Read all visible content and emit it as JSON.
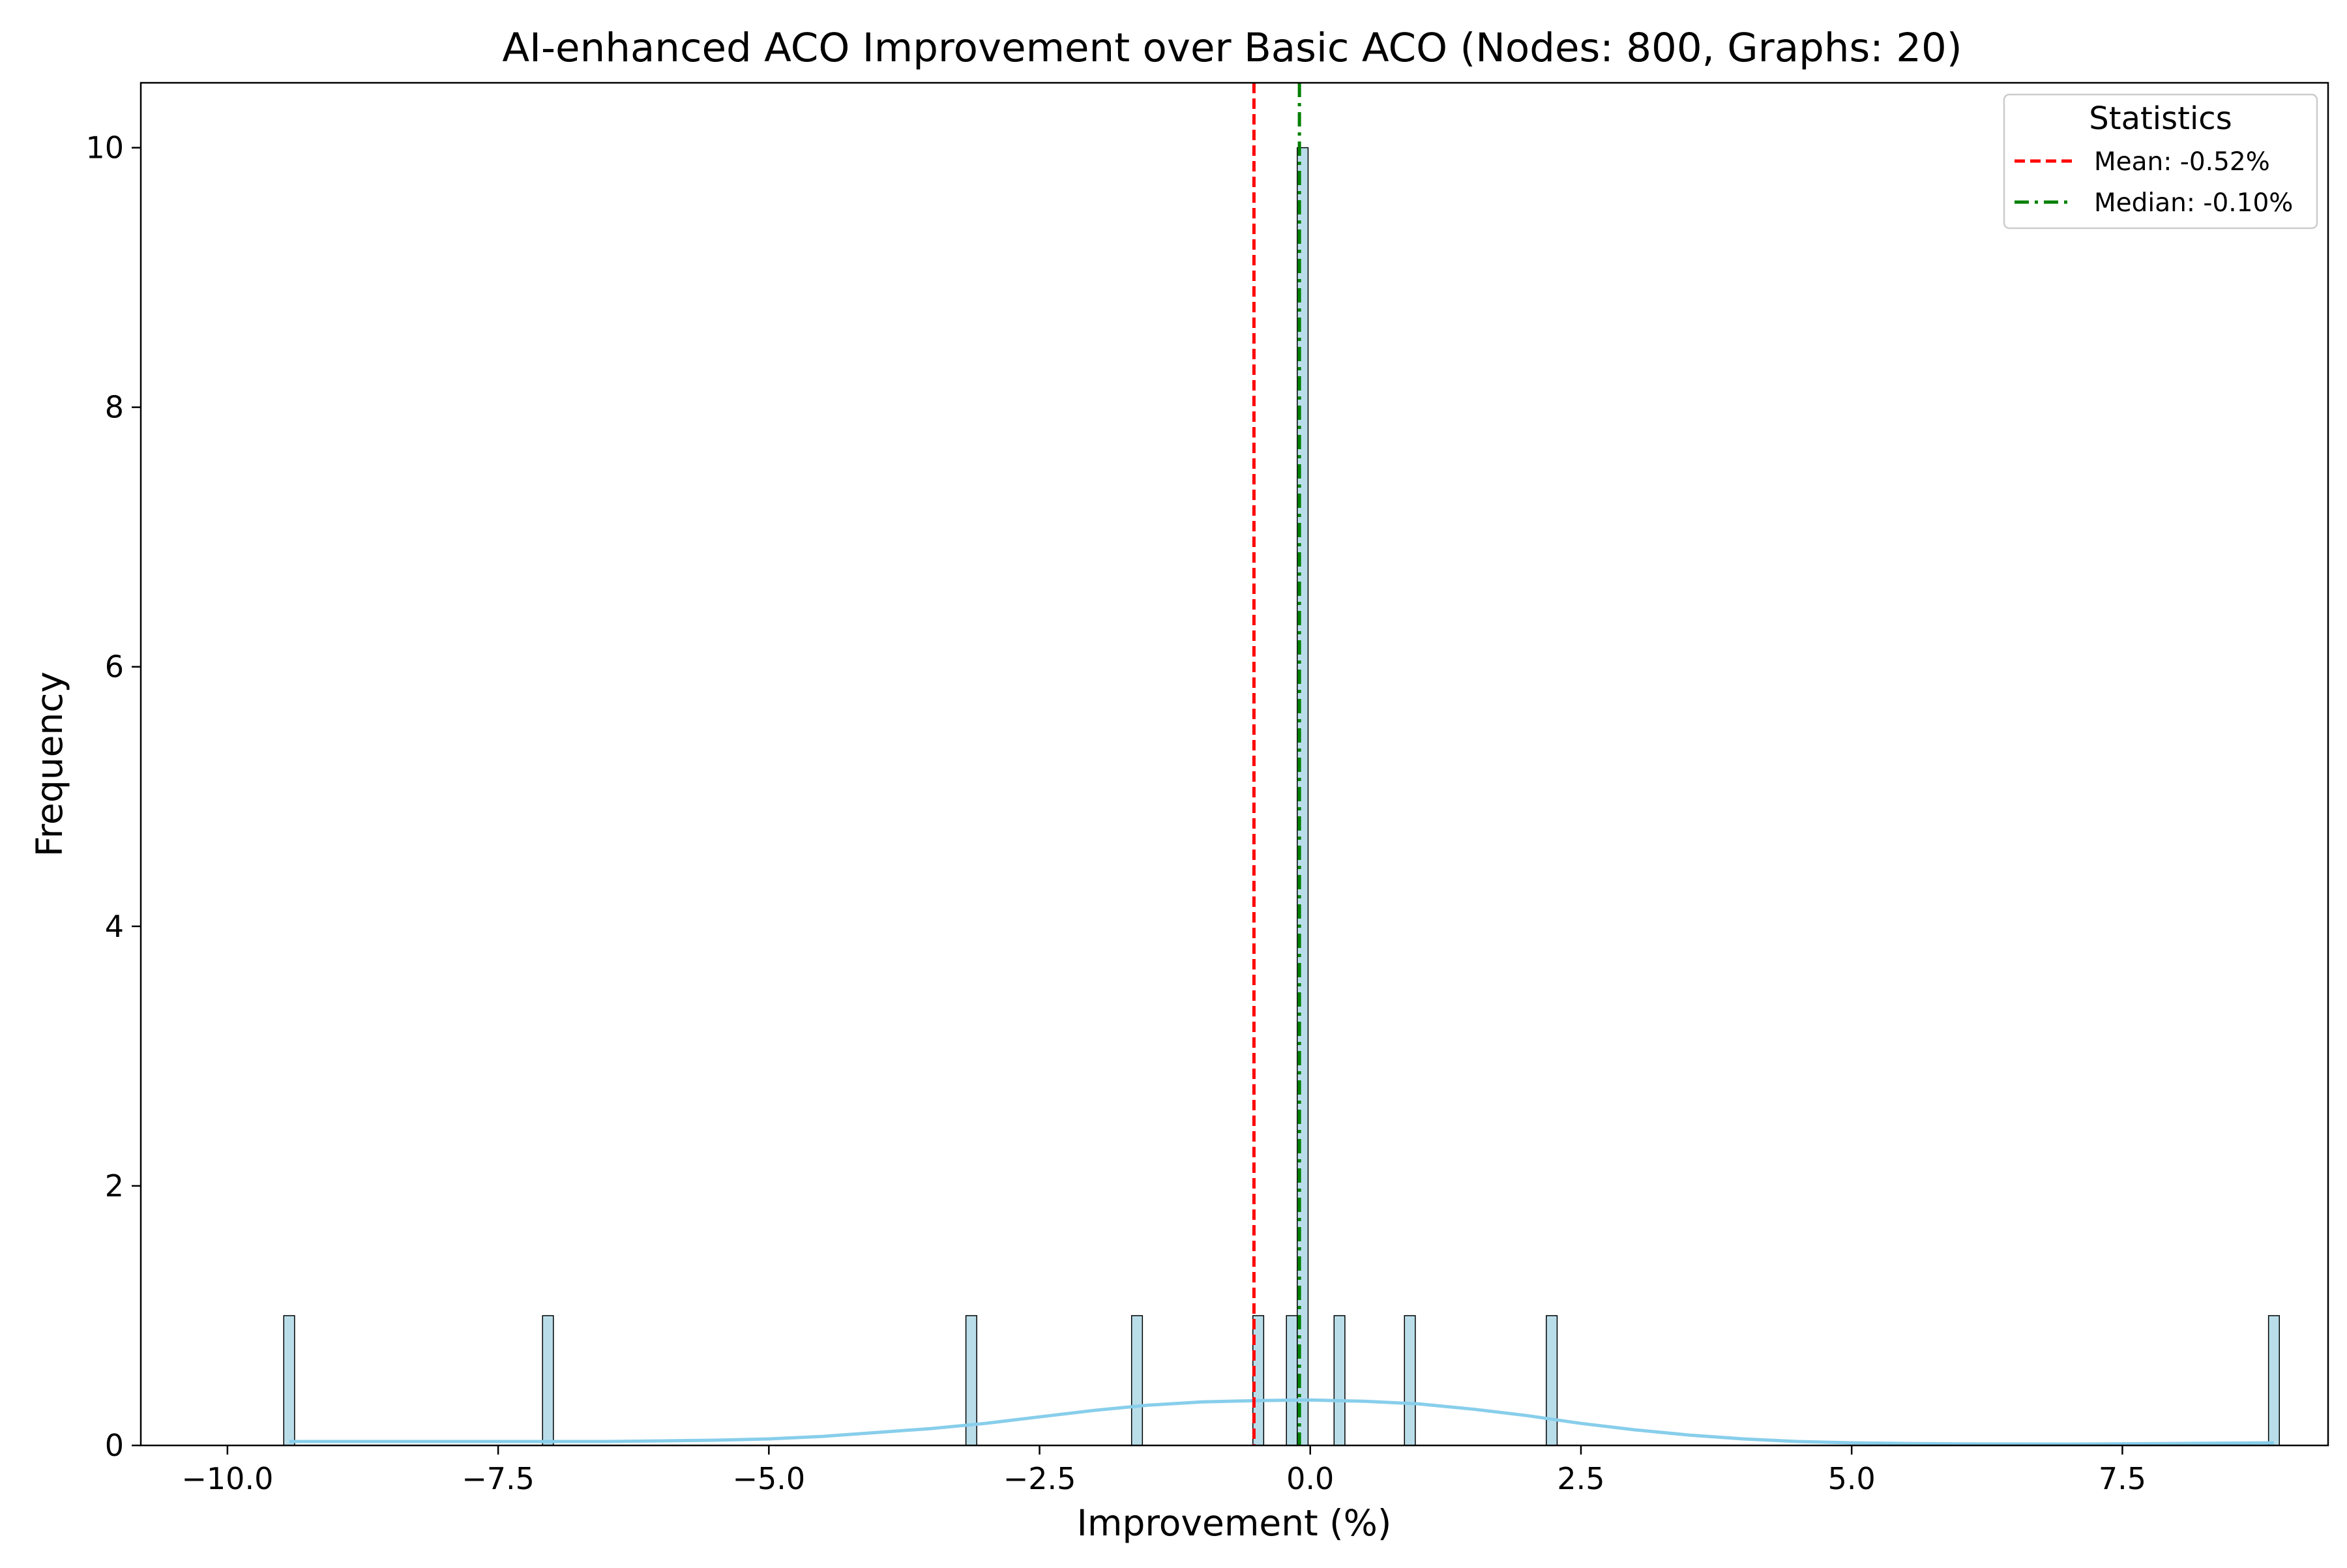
{
  "chart_data": {
    "type": "bar",
    "title": "AI-enhanced ACO Improvement over Basic ACO (Nodes: 800, Graphs: 20)",
    "xlabel": "Improvement (%)",
    "ylabel": "Frequency",
    "xlim": [
      -10.8,
      9.4
    ],
    "ylim": [
      0,
      10.5
    ],
    "xticks": [
      -10.0,
      -7.5,
      -5.0,
      -2.5,
      0.0,
      2.5,
      5.0,
      7.5
    ],
    "xtick_labels": [
      "−10.0",
      "−7.5",
      "−5.0",
      "−2.5",
      "0.0",
      "2.5",
      "5.0",
      "7.5"
    ],
    "yticks": [
      0,
      2,
      4,
      6,
      8,
      10
    ],
    "ytick_labels": [
      "0",
      "2",
      "4",
      "6",
      "8",
      "10"
    ],
    "bar_width": 0.1,
    "bars": [
      {
        "x": -9.43,
        "value": 1
      },
      {
        "x": -7.04,
        "value": 1
      },
      {
        "x": -3.13,
        "value": 1
      },
      {
        "x": -1.6,
        "value": 1
      },
      {
        "x": -0.48,
        "value": 1
      },
      {
        "x": -0.17,
        "value": 1
      },
      {
        "x": -0.07,
        "value": 10
      },
      {
        "x": 0.27,
        "value": 1
      },
      {
        "x": 0.92,
        "value": 1
      },
      {
        "x": 2.23,
        "value": 1
      },
      {
        "x": 8.9,
        "value": 1
      }
    ],
    "kde": {
      "x": [
        -9.43,
        -8.5,
        -7.5,
        -6.5,
        -5.5,
        -5.0,
        -4.5,
        -4.0,
        -3.5,
        -3.0,
        -2.5,
        -2.0,
        -1.5,
        -1.0,
        -0.5,
        0.0,
        0.5,
        1.0,
        1.5,
        2.0,
        2.5,
        3.0,
        3.5,
        4.0,
        4.5,
        5.0,
        5.5,
        6.0,
        7.0,
        8.0,
        8.9
      ],
      "y": [
        0.03,
        0.03,
        0.03,
        0.03,
        0.04,
        0.05,
        0.07,
        0.1,
        0.13,
        0.17,
        0.22,
        0.27,
        0.31,
        0.335,
        0.345,
        0.35,
        0.34,
        0.32,
        0.28,
        0.23,
        0.17,
        0.12,
        0.08,
        0.05,
        0.03,
        0.02,
        0.015,
        0.012,
        0.01,
        0.015,
        0.02
      ]
    },
    "lines": [
      {
        "name": "Mean: -0.52%",
        "x": -0.52,
        "color": "#ff0000",
        "style": "dashed"
      },
      {
        "name": "Median: -0.10%",
        "x": -0.1,
        "color": "#008000",
        "style": "dashdot"
      }
    ],
    "legend": {
      "title": "Statistics",
      "position": "top-right"
    },
    "grid": false,
    "colors": {
      "bar_fill": "#add8e6",
      "bar_edge": "#000000",
      "kde_line": "#87ceeb"
    }
  }
}
